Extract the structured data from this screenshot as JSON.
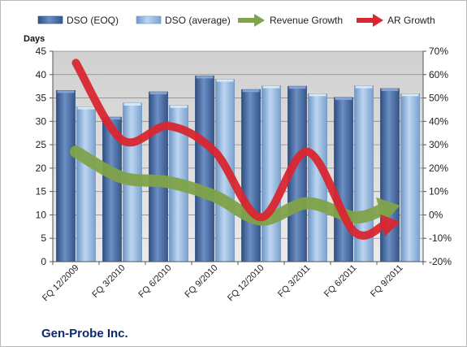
{
  "chart_data": {
    "type": "bar",
    "title": "",
    "company": "Gen-Probe Inc.",
    "y_left_unit": "Days",
    "y_left_lim": [
      0,
      45
    ],
    "y_left_ticks": [
      "0",
      "5",
      "10",
      "15",
      "20",
      "25",
      "30",
      "35",
      "40",
      "45"
    ],
    "y_right_lim": [
      -20,
      70
    ],
    "y_right_ticks": [
      "-20%",
      "-10%",
      "0%",
      "10%",
      "20%",
      "30%",
      "40%",
      "50%",
      "60%",
      "70%"
    ],
    "categories": [
      "FQ 12/2009",
      "FQ 3/2010",
      "FQ 6/2010",
      "FQ 9/2010",
      "FQ 12/2010",
      "FQ 3/2011",
      "FQ 6/2011",
      "FQ 9/2011"
    ],
    "legend_position": "top",
    "grid": true,
    "series": [
      {
        "name": "DSO (EOQ)",
        "type": "bar",
        "axis": "left",
        "color": "#4a6fa5",
        "values": [
          36.6,
          30.9,
          36.3,
          39.7,
          36.8,
          37.5,
          35.1,
          37.0
        ]
      },
      {
        "name": "DSO (average)",
        "type": "bar",
        "axis": "left",
        "color": "#8fb4dc",
        "values": [
          33.1,
          33.9,
          33.4,
          39.0,
          37.6,
          35.9,
          37.6,
          35.9
        ]
      },
      {
        "name": "Revenue Growth",
        "type": "line",
        "axis": "right",
        "color": "#7fa24a",
        "values": [
          27,
          16,
          14,
          8,
          -2,
          5,
          -1,
          4
        ]
      },
      {
        "name": "AR Growth",
        "type": "line",
        "axis": "right",
        "color": "#d9262f",
        "values": [
          65,
          32,
          38,
          27,
          -1,
          27,
          -7,
          -3
        ]
      }
    ]
  }
}
